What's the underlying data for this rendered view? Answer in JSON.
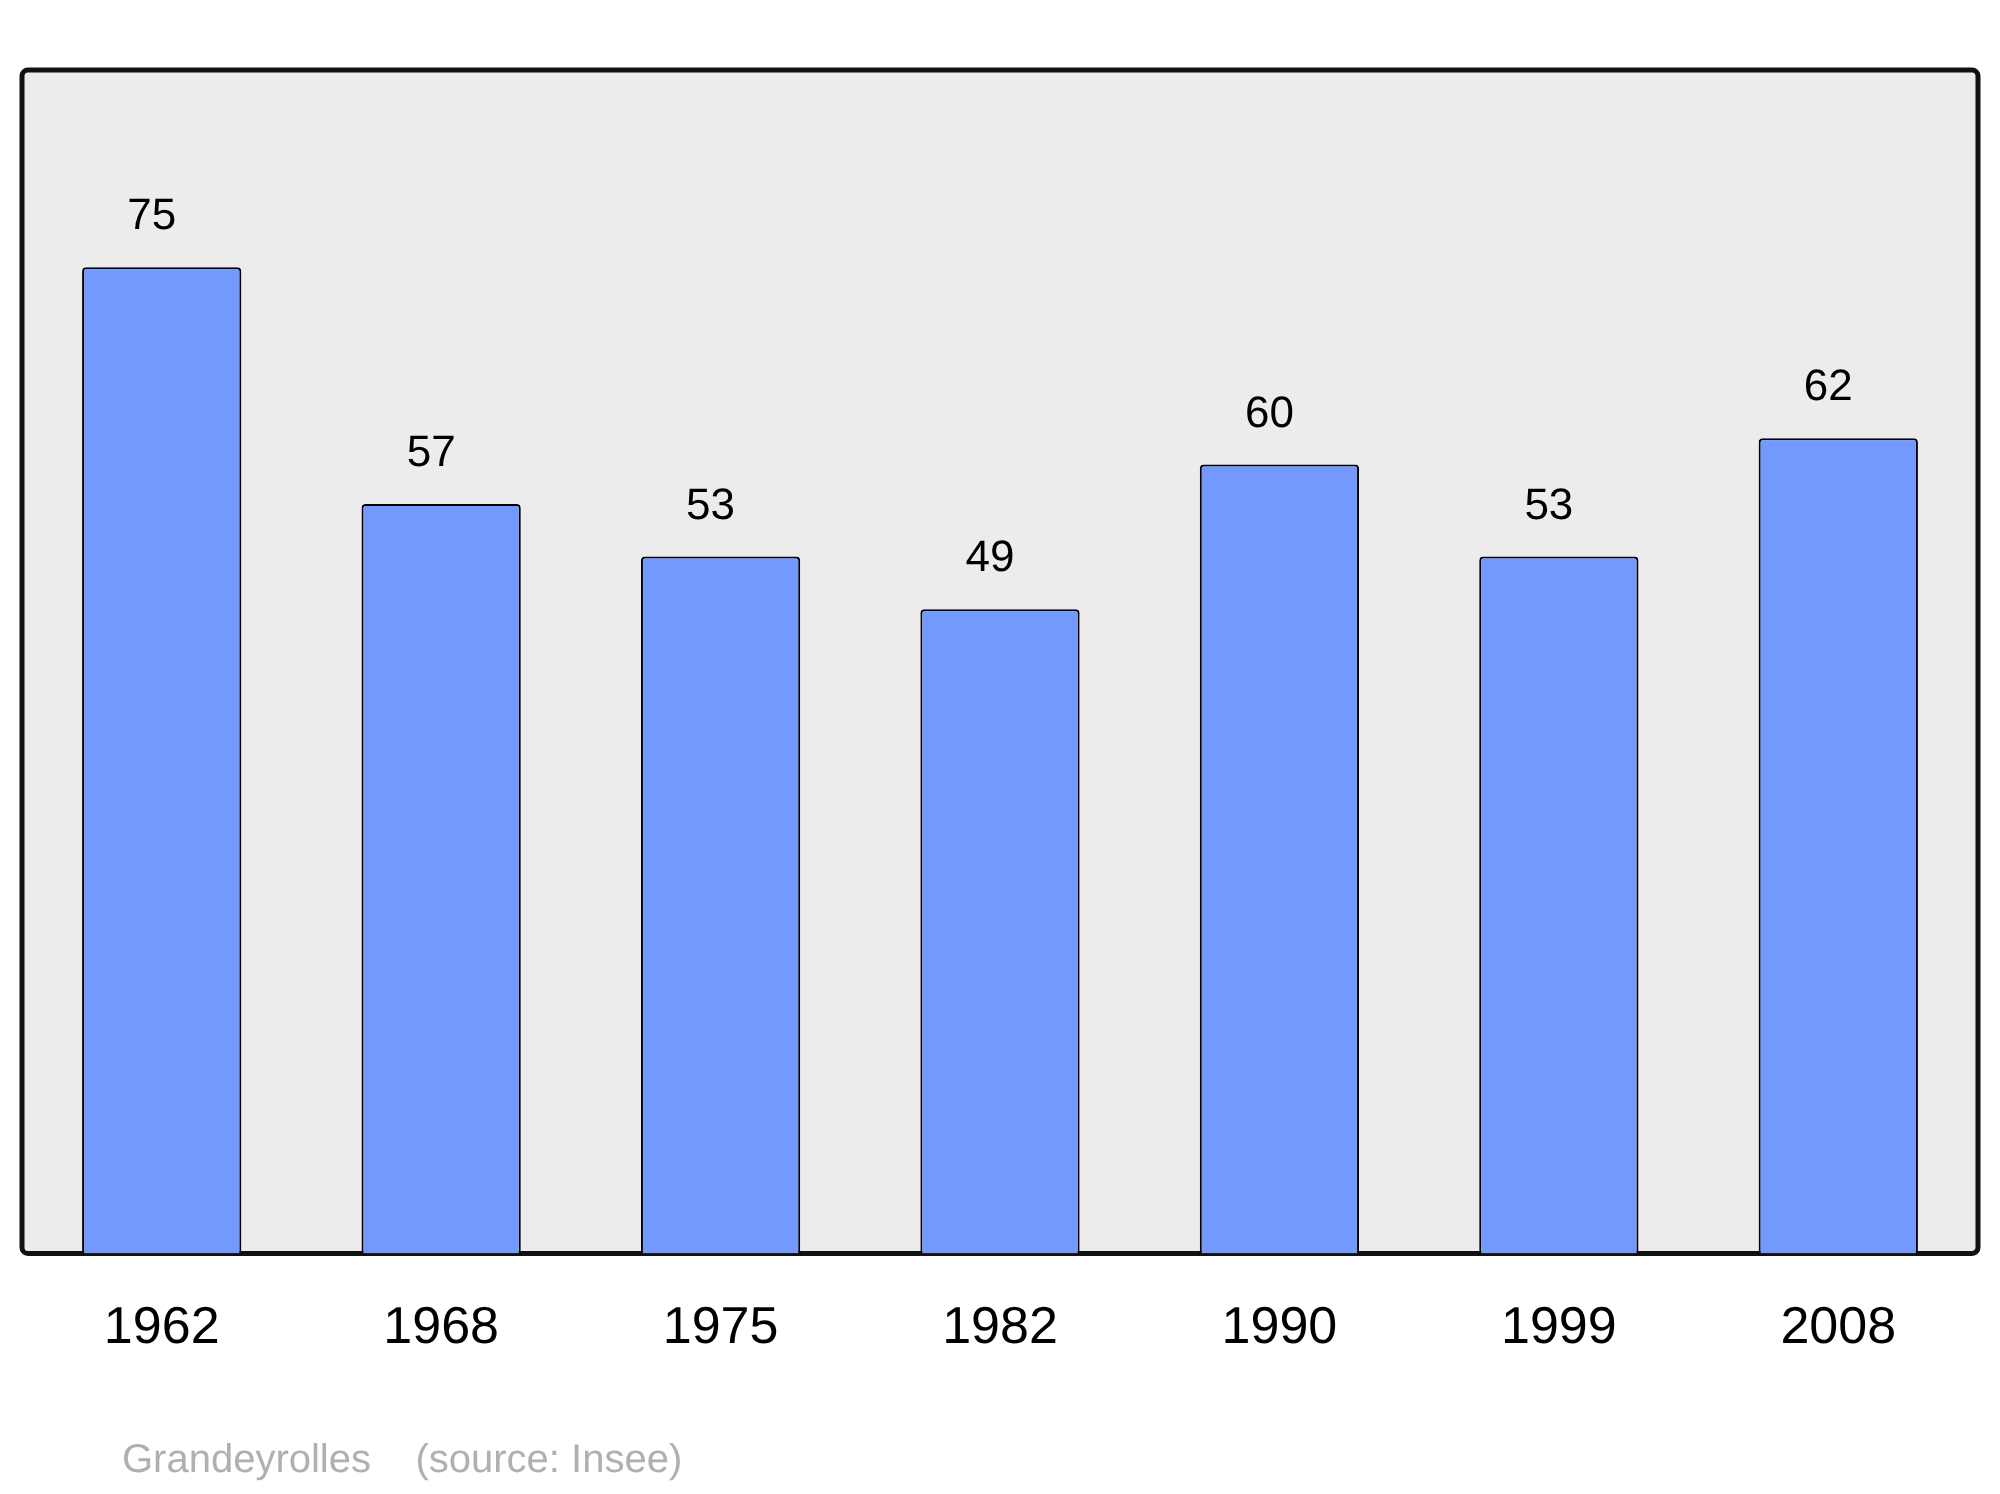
{
  "chart_data": {
    "type": "bar",
    "categories": [
      "1962",
      "1968",
      "1975",
      "1982",
      "1990",
      "1999",
      "2008"
    ],
    "values": [
      75,
      57,
      53,
      49,
      60,
      53,
      62
    ],
    "color": "#7399ff",
    "data_labels": true,
    "grid": false,
    "legend": false,
    "annotations": [
      "Grandeyrolles    (source: Insee)"
    ]
  }
}
